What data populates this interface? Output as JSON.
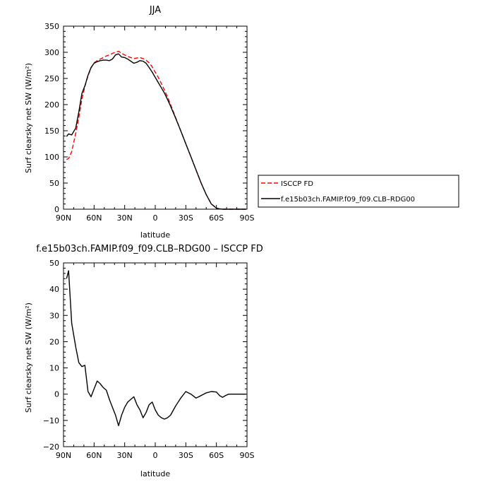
{
  "chart_data": [
    {
      "type": "line",
      "title": "JJA",
      "xlabel": "latitude",
      "ylabel": "Surf clearsky net SW (W/m²)",
      "xlim": [
        90,
        -90
      ],
      "ylim": [
        0,
        350
      ],
      "x_ticks": [
        90,
        60,
        30,
        0,
        -30,
        -60,
        -90
      ],
      "x_tick_labels": [
        "90N",
        "60N",
        "30N",
        "0",
        "30S",
        "60S",
        "90S"
      ],
      "y_ticks": [
        0,
        50,
        100,
        150,
        200,
        250,
        300,
        350
      ],
      "y_tick_labels": [
        "0",
        "50",
        "100",
        "150",
        "200",
        "250",
        "300",
        "350"
      ],
      "legend_position": "right",
      "series": [
        {
          "name": "ISCCP FD",
          "color": "#ff0000",
          "dash": "dashed",
          "x": [
            87,
            85,
            82,
            78,
            75,
            72,
            69,
            66,
            63,
            60,
            57,
            54,
            51,
            48,
            45,
            42,
            39,
            36,
            33,
            30,
            27,
            24,
            21,
            18,
            15,
            12,
            9,
            6,
            3,
            0,
            -3,
            -6,
            -9,
            -12,
            -15,
            -20,
            -25,
            -30,
            -35,
            -40,
            -45,
            -50,
            -55,
            -60,
            -63,
            -66,
            -69,
            -72,
            -75,
            -80,
            -85,
            -89
          ],
          "values": [
            95,
            97,
            110,
            145,
            175,
            210,
            235,
            255,
            270,
            280,
            284,
            287,
            290,
            293,
            295,
            298,
            300,
            302,
            298,
            295,
            292,
            290,
            288,
            289,
            290,
            288,
            285,
            280,
            272,
            262,
            252,
            240,
            228,
            215,
            200,
            175,
            150,
            125,
            100,
            75,
            50,
            28,
            10,
            2,
            0.5,
            0,
            0,
            0,
            0,
            0,
            0,
            0
          ]
        },
        {
          "name": "f.e15b03ch.FAMIP.f09_f09.CLB–RDG00",
          "color": "#000000",
          "dash": "solid",
          "x": [
            87,
            85,
            82,
            78,
            75,
            72,
            69,
            66,
            63,
            60,
            57,
            54,
            51,
            48,
            45,
            42,
            39,
            36,
            33,
            30,
            27,
            24,
            21,
            18,
            15,
            12,
            9,
            6,
            3,
            0,
            -3,
            -6,
            -9,
            -12,
            -15,
            -20,
            -25,
            -30,
            -35,
            -40,
            -45,
            -50,
            -55,
            -60,
            -63,
            -66,
            -69,
            -72,
            -75,
            -80,
            -85,
            -89
          ],
          "values": [
            139,
            144,
            142,
            155,
            186,
            221,
            236,
            256,
            271,
            279,
            282,
            284,
            285,
            285,
            284,
            287,
            295,
            297,
            291,
            290,
            287,
            283,
            279,
            281,
            284,
            283,
            279,
            271,
            262,
            252,
            242,
            232,
            222,
            210,
            197,
            174,
            150,
            125,
            100,
            75,
            50,
            28,
            10,
            2,
            0.5,
            0,
            0,
            0,
            0,
            0,
            0,
            0
          ]
        }
      ]
    },
    {
      "type": "line",
      "title": "f.e15b03ch.FAMIP.f09_f09.CLB–RDG00 – ISCCP FD",
      "xlabel": "latitude",
      "ylabel": "Surf clearsky net SW (W/m²)",
      "xlim": [
        90,
        -90
      ],
      "ylim": [
        -20,
        50
      ],
      "x_ticks": [
        90,
        60,
        30,
        0,
        -30,
        -60,
        -90
      ],
      "x_tick_labels": [
        "90N",
        "60N",
        "30N",
        "0",
        "30S",
        "60S",
        "90S"
      ],
      "y_ticks": [
        -20,
        -10,
        0,
        10,
        20,
        30,
        40,
        50
      ],
      "y_tick_labels": [
        "−20",
        "−10",
        "0",
        "10",
        "20",
        "30",
        "40",
        "50"
      ],
      "series": [
        {
          "color": "#000000",
          "dash": "solid",
          "x": [
            87,
            85,
            82,
            78,
            75,
            72,
            69,
            66,
            63,
            60,
            57,
            54,
            51,
            48,
            45,
            42,
            39,
            36,
            33,
            30,
            27,
            24,
            21,
            18,
            15,
            12,
            9,
            6,
            3,
            0,
            -3,
            -6,
            -9,
            -12,
            -15,
            -20,
            -25,
            -30,
            -35,
            -40,
            -45,
            -50,
            -55,
            -60,
            -63,
            -66,
            -69,
            -72,
            -75,
            -80,
            -85,
            -89
          ],
          "values": [
            44,
            47,
            27,
            18,
            12,
            10.5,
            11,
            1,
            -1,
            2,
            5,
            4,
            2.5,
            1.5,
            -2,
            -5,
            -8,
            -12,
            -8,
            -5,
            -3,
            -2,
            -1,
            -4,
            -6,
            -9,
            -7,
            -4,
            -3,
            -6,
            -8,
            -9,
            -9.5,
            -9,
            -8,
            -4.5,
            -1.5,
            1,
            0,
            -1.5,
            -0.5,
            0.5,
            1,
            0.8,
            -0.5,
            -1.2,
            -0.5,
            0,
            0,
            0,
            0,
            0
          ]
        }
      ]
    }
  ]
}
